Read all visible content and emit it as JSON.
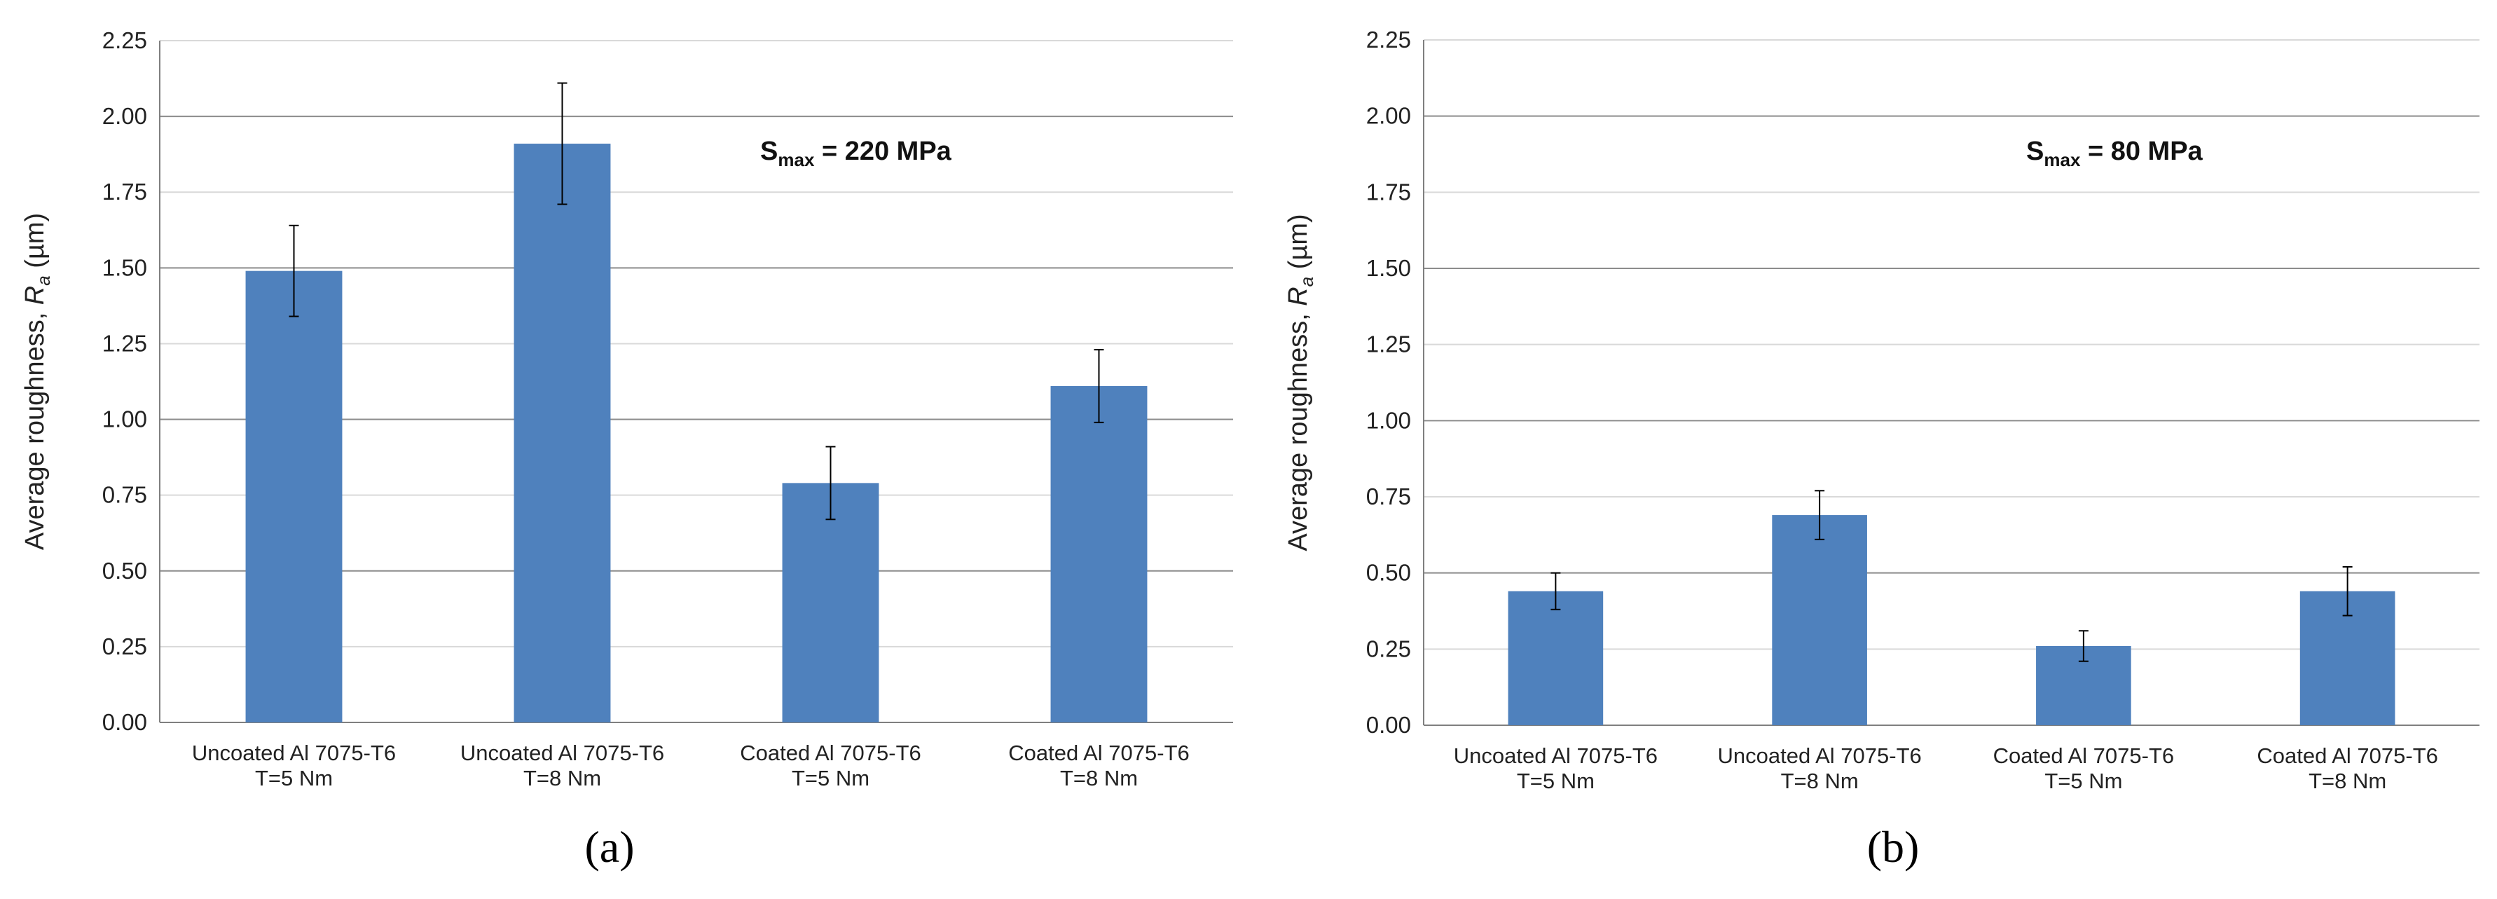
{
  "chart_data": [
    {
      "type": "bar",
      "panel_label": "(a)",
      "ylabel": "Average roughness, R",
      "ylabel_sub": "a",
      "ylabel_unit": " (µm)",
      "ylim": [
        0,
        2.25
      ],
      "yticks": [
        "0.00",
        "0.25",
        "0.50",
        "0.75",
        "1.00",
        "1.25",
        "1.50",
        "1.75",
        "2.00",
        "2.25"
      ],
      "grid": "horizontal",
      "categories": [
        [
          "Uncoated Al 7075-T6",
          "T=5 Nm"
        ],
        [
          "Uncoated Al 7075-T6",
          "T=8 Nm"
        ],
        [
          "Coated Al 7075-T6",
          "T=5 Nm"
        ],
        [
          "Coated Al 7075-T6",
          "T=8 Nm"
        ]
      ],
      "values": [
        1.49,
        1.91,
        0.79,
        1.11
      ],
      "errors": [
        0.15,
        0.2,
        0.12,
        0.12
      ],
      "annotation": {
        "main": "S",
        "sub": "max",
        "rest": " = 220 MPa"
      },
      "bar_color": "#4F81BD"
    },
    {
      "type": "bar",
      "panel_label": "(b)",
      "ylabel": "Average roughness, R",
      "ylabel_sub": "a",
      "ylabel_unit": " (µm)",
      "ylim": [
        0,
        2.25
      ],
      "yticks": [
        "0.00",
        "0.25",
        "0.50",
        "0.75",
        "1.00",
        "1.25",
        "1.50",
        "1.75",
        "2.00",
        "2.25"
      ],
      "grid": "horizontal",
      "categories": [
        [
          "Uncoated Al 7075-T6",
          "T=5 Nm"
        ],
        [
          "Uncoated Al 7075-T6",
          "T=8 Nm"
        ],
        [
          "Coated Al 7075-T6",
          "T=5 Nm"
        ],
        [
          "Coated Al 7075-T6",
          "T=8 Nm"
        ]
      ],
      "values": [
        0.44,
        0.69,
        0.26,
        0.44
      ],
      "errors": [
        0.06,
        0.08,
        0.05,
        0.08
      ],
      "annotation": {
        "main": "S",
        "sub": "max",
        "rest": " = 80 MPa"
      },
      "bar_color": "#4F81BD"
    }
  ]
}
